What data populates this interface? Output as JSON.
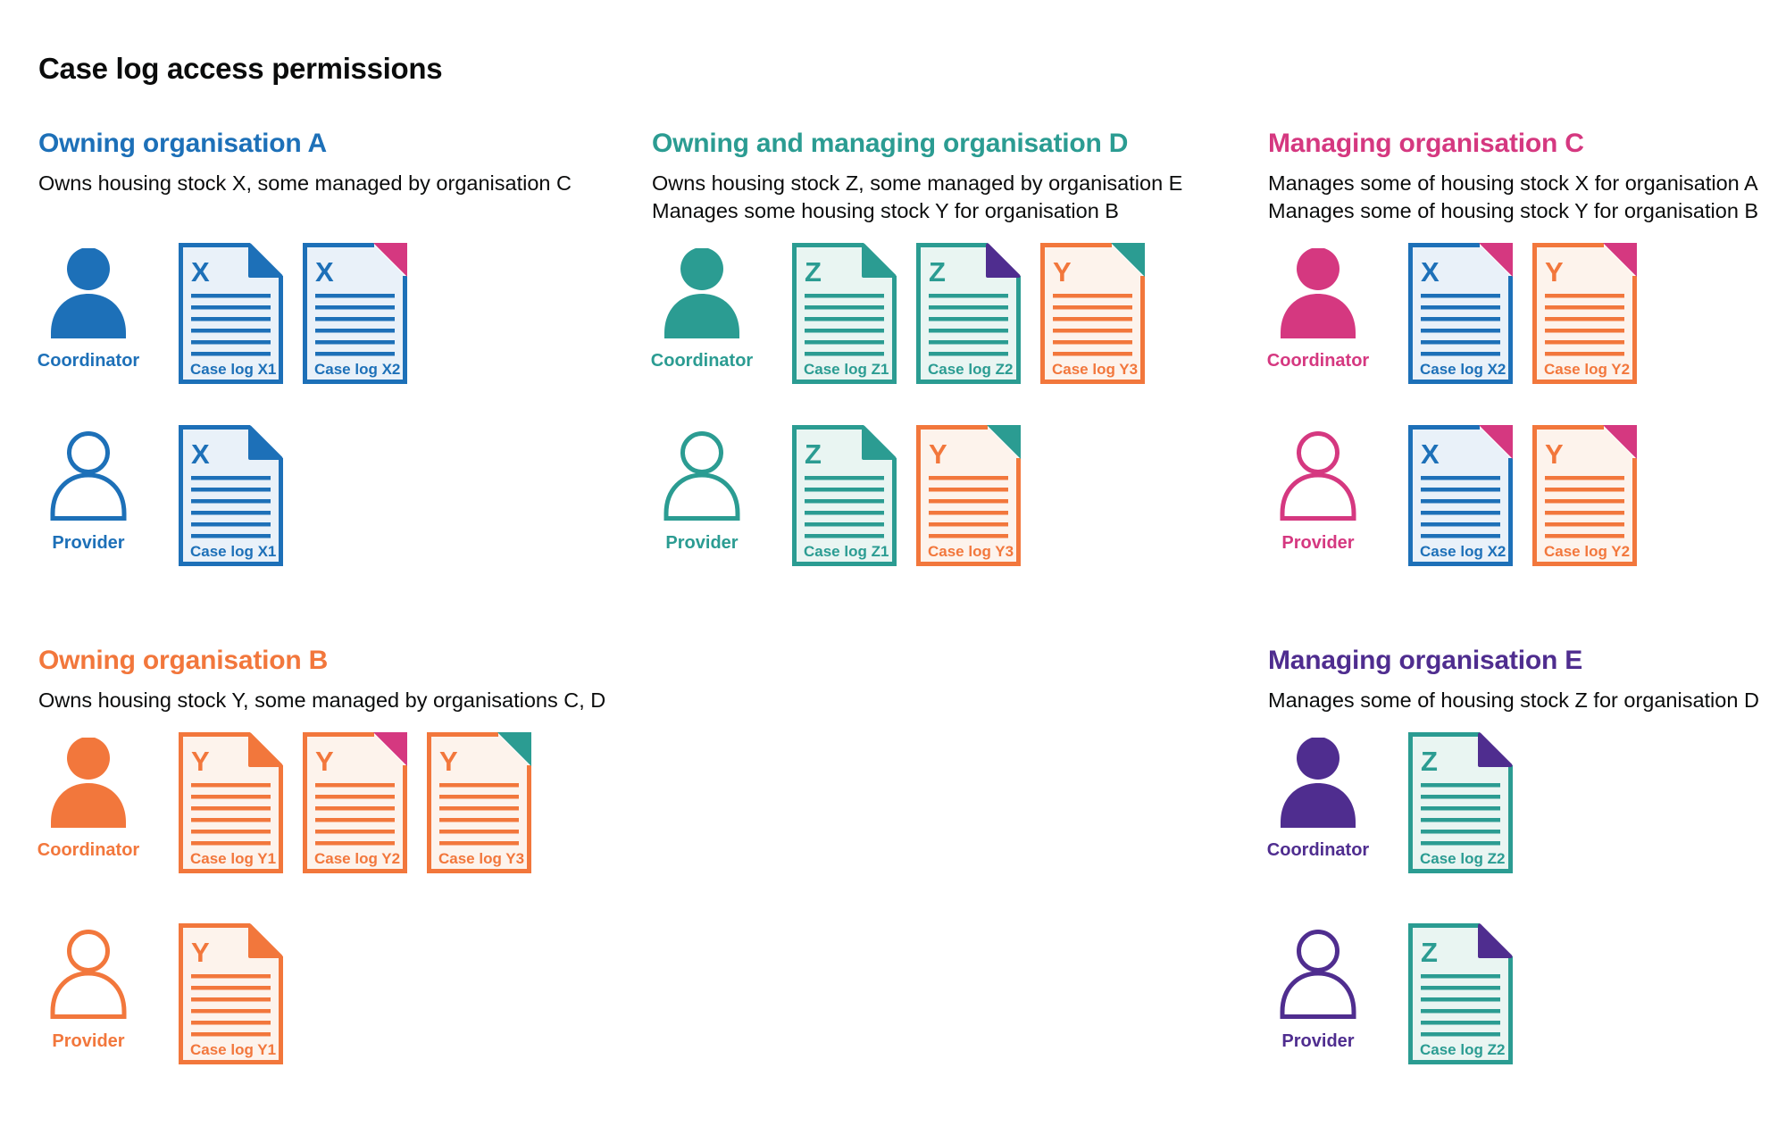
{
  "title": "Case log access permissions",
  "roles": {
    "coordinator_label": "Coordinator",
    "provider_label": "Provider"
  },
  "palette": {
    "blue": {
      "main": "#1d70b8",
      "tint": "#e9f1f9"
    },
    "teal": {
      "main": "#2b9c92",
      "tint": "#e9f5f2"
    },
    "orange": {
      "main": "#f2773c",
      "tint": "#fdf3ec"
    },
    "pink": {
      "main": "#d53880",
      "tint": "#fbeaf2"
    },
    "purple": {
      "main": "#4f2d8f",
      "tint": "#ece8f4"
    },
    "text_black": "#0b0c0c"
  },
  "sections": [
    {
      "id": "A",
      "heading": "Owning organisation A",
      "color": "blue",
      "description": [
        "Owns housing stock X, some managed by organisation C"
      ],
      "coordinator_docs": [
        {
          "letter": "X",
          "label": "Case log X1",
          "doc_color": "blue",
          "corner_color": "blue",
          "corner_style": "fold"
        },
        {
          "letter": "X",
          "label": "Case log X2",
          "doc_color": "blue",
          "corner_color": "pink",
          "corner_style": "solid"
        }
      ],
      "provider_docs": [
        {
          "letter": "X",
          "label": "Case log X1",
          "doc_color": "blue",
          "corner_color": "blue",
          "corner_style": "fold"
        }
      ]
    },
    {
      "id": "D",
      "heading": "Owning and managing organisation D",
      "color": "teal",
      "description": [
        "Owns housing stock Z, some managed by organisation E",
        "Manages some housing stock Y for organisation B"
      ],
      "coordinator_docs": [
        {
          "letter": "Z",
          "label": "Case log Z1",
          "doc_color": "teal",
          "corner_color": "teal",
          "corner_style": "fold"
        },
        {
          "letter": "Z",
          "label": "Case log Z2",
          "doc_color": "teal",
          "corner_color": "purple",
          "corner_style": "fold"
        },
        {
          "letter": "Y",
          "label": "Case log Y3",
          "doc_color": "orange",
          "corner_color": "teal",
          "corner_style": "solid"
        }
      ],
      "provider_docs": [
        {
          "letter": "Z",
          "label": "Case log Z1",
          "doc_color": "teal",
          "corner_color": "teal",
          "corner_style": "fold"
        },
        {
          "letter": "Y",
          "label": "Case log Y3",
          "doc_color": "orange",
          "corner_color": "teal",
          "corner_style": "solid"
        }
      ]
    },
    {
      "id": "C",
      "heading": "Managing organisation C",
      "color": "pink",
      "description": [
        "Manages some of housing stock X for organisation A",
        "Manages some of housing stock Y for organisation B"
      ],
      "coordinator_docs": [
        {
          "letter": "X",
          "label": "Case log X2",
          "doc_color": "blue",
          "corner_color": "pink",
          "corner_style": "solid"
        },
        {
          "letter": "Y",
          "label": "Case log Y2",
          "doc_color": "orange",
          "corner_color": "pink",
          "corner_style": "solid"
        }
      ],
      "provider_docs": [
        {
          "letter": "X",
          "label": "Case log X2",
          "doc_color": "blue",
          "corner_color": "pink",
          "corner_style": "solid"
        },
        {
          "letter": "Y",
          "label": "Case log Y2",
          "doc_color": "orange",
          "corner_color": "pink",
          "corner_style": "solid"
        }
      ]
    },
    {
      "id": "B",
      "heading": "Owning organisation B",
      "color": "orange",
      "description": [
        "Owns housing stock Y, some managed by organisations C, D"
      ],
      "coordinator_docs": [
        {
          "letter": "Y",
          "label": "Case log Y1",
          "doc_color": "orange",
          "corner_color": "orange",
          "corner_style": "fold"
        },
        {
          "letter": "Y",
          "label": "Case log Y2",
          "doc_color": "orange",
          "corner_color": "pink",
          "corner_style": "solid"
        },
        {
          "letter": "Y",
          "label": "Case log Y3",
          "doc_color": "orange",
          "corner_color": "teal",
          "corner_style": "solid"
        }
      ],
      "provider_docs": [
        {
          "letter": "Y",
          "label": "Case log Y1",
          "doc_color": "orange",
          "corner_color": "orange",
          "corner_style": "fold"
        }
      ]
    },
    {
      "id": "E",
      "heading": "Managing organisation E",
      "color": "purple",
      "description": [
        "Manages some of housing stock Z for organisation D"
      ],
      "coordinator_docs": [
        {
          "letter": "Z",
          "label": "Case log Z2",
          "doc_color": "teal",
          "corner_color": "purple",
          "corner_style": "fold"
        }
      ],
      "provider_docs": [
        {
          "letter": "Z",
          "label": "Case log Z2",
          "doc_color": "teal",
          "corner_color": "purple",
          "corner_style": "fold"
        }
      ]
    }
  ]
}
